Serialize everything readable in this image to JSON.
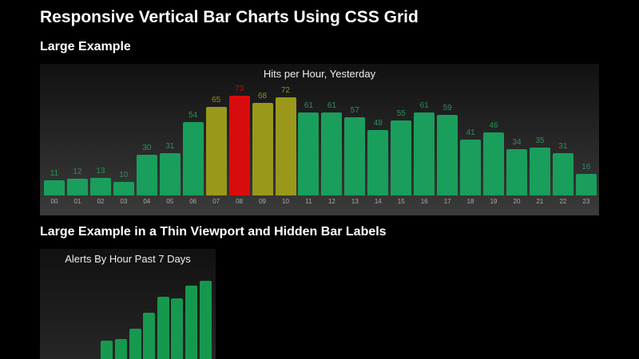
{
  "page_title": "Responsive Vertical Bar Charts Using CSS Grid",
  "section1_title": "Large Example",
  "section2_title": "Large Example in a Thin Viewport and Hidden Bar Labels",
  "colors": {
    "normal": "#1a9e5c",
    "warning": "#9a981a",
    "critical": "#d80c0c",
    "normal_label": "#2f8f5a",
    "warning_label": "#8f8d22",
    "critical_label": "#b81010"
  },
  "chart_data": [
    {
      "type": "bar",
      "title": "Hits per Hour, Yesterday",
      "categories": [
        "00",
        "01",
        "02",
        "03",
        "04",
        "05",
        "06",
        "07",
        "08",
        "09",
        "10",
        "11",
        "12",
        "13",
        "14",
        "15",
        "16",
        "17",
        "18",
        "19",
        "20",
        "21",
        "22",
        "23"
      ],
      "values": [
        11,
        12,
        13,
        10,
        30,
        31,
        54,
        65,
        73,
        68,
        72,
        61,
        61,
        57,
        48,
        55,
        61,
        59,
        41,
        46,
        34,
        35,
        31,
        16
      ],
      "status": [
        "normal",
        "normal",
        "normal",
        "normal",
        "normal",
        "normal",
        "normal",
        "warning",
        "critical",
        "warning",
        "warning",
        "normal",
        "normal",
        "normal",
        "normal",
        "normal",
        "normal",
        "normal",
        "normal",
        "normal",
        "normal",
        "normal",
        "normal",
        "normal"
      ],
      "ylim": [
        0,
        73
      ],
      "grid": false
    },
    {
      "type": "bar",
      "title": "Alerts By Hour Past 7 Days",
      "values": [
        0,
        0,
        0,
        0,
        29,
        31,
        48,
        73,
        97,
        95,
        115,
        123
      ],
      "bar_labels_hidden": true,
      "grid": false
    }
  ]
}
